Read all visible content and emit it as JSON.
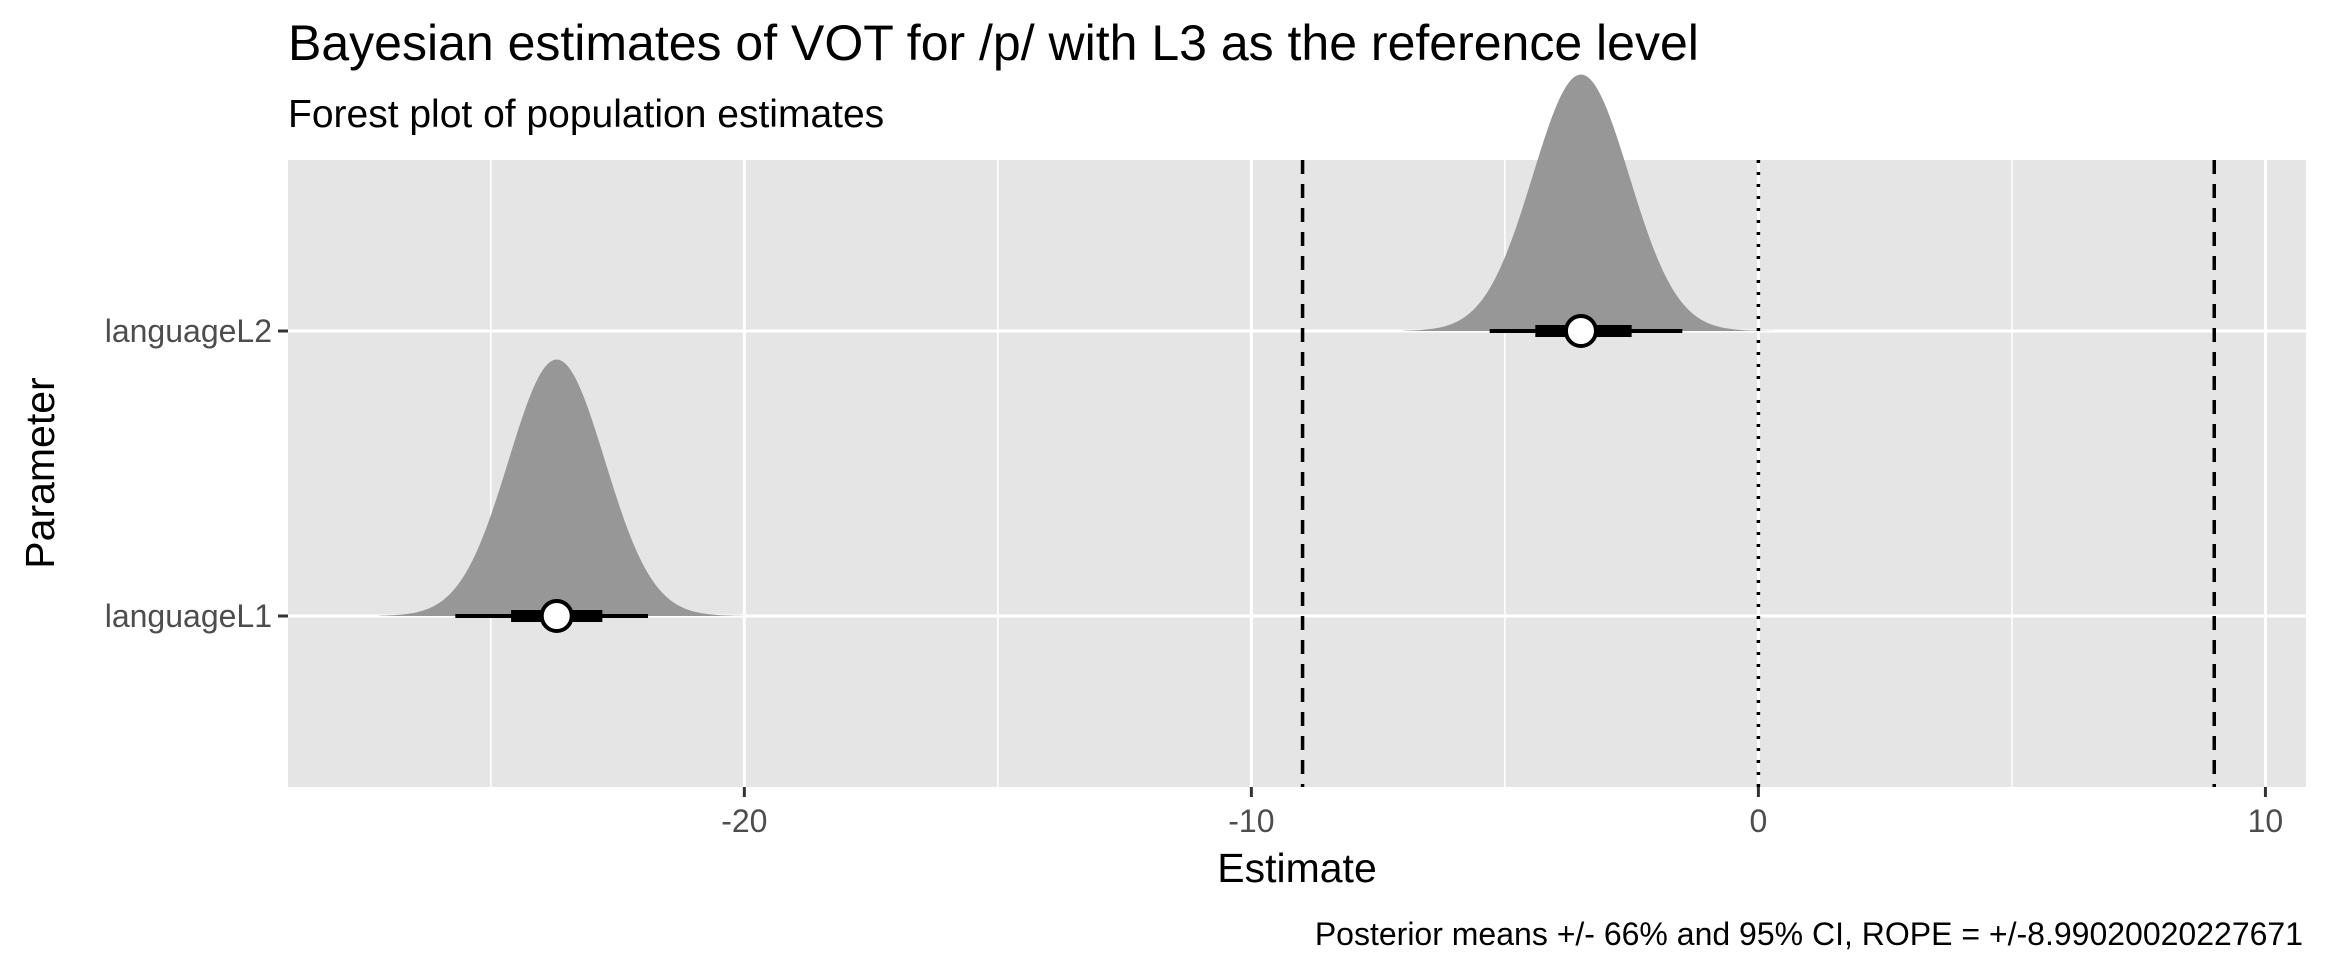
{
  "chart_data": {
    "type": "forest",
    "title": "Bayesian estimates of VOT for /p/ with L3 as the reference level",
    "subtitle": "Forest plot of population estimates",
    "xlabel": "Estimate",
    "ylabel": "Parameter",
    "caption": "Posterior means +/- 66% and 95% CI, ROPE = +/-8.99020020227671",
    "xlim": [
      -29.0,
      10.8
    ],
    "x_ticks": [
      -20,
      -10,
      0,
      10
    ],
    "x_tick_labels": [
      "-20",
      "-10",
      "0",
      "10"
    ],
    "y_categories": [
      "languageL1",
      "languageL2"
    ],
    "grid": true,
    "legend": "none",
    "rope": [
      -8.99020020227671,
      8.99020020227671
    ],
    "zero_line": 0,
    "series": [
      {
        "name": "languageL2",
        "mean": -3.5,
        "ci66": [
          -4.4,
          -2.5
        ],
        "ci95": [
          -5.3,
          -1.5
        ],
        "sd": 0.95,
        "min": -7.0,
        "max": 0.3
      },
      {
        "name": "languageL1",
        "mean": -23.7,
        "ci66": [
          -24.6,
          -22.8
        ],
        "ci95": [
          -25.7,
          -21.9
        ],
        "sd": 0.95,
        "min": -27.2,
        "max": -20.0
      }
    ],
    "colors": {
      "panel": "#e5e5e5",
      "grid": "#ffffff",
      "density": "#979797",
      "interval": "#000000",
      "point_fill": "#ffffff"
    }
  }
}
